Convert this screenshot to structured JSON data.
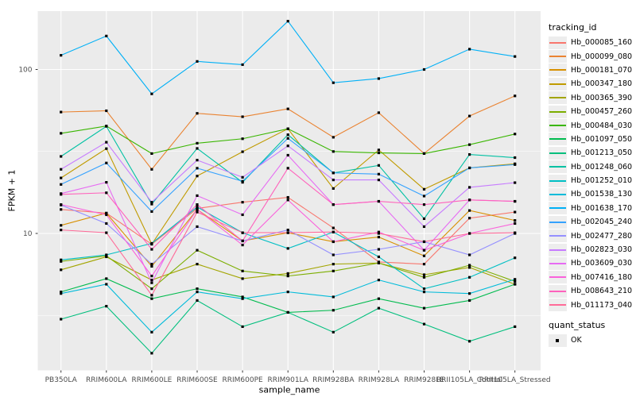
{
  "figure": {
    "background": "#FFFFFF",
    "panel_bg": "#EBEBEB",
    "grid_color": "#FFFFFF",
    "tick_color": "#333333",
    "tick_label_color": "#4D4D4D",
    "marker_color": "#000000"
  },
  "chart_data": {
    "type": "line",
    "title": "",
    "xlabel": "sample_name",
    "ylabel": "FPKM + 1",
    "y_scale": "log10",
    "ylim": [
      1.46,
      227
    ],
    "y_ticks": [
      10,
      100
    ],
    "y_minor_ticks": [
      3.162,
      31.62
    ],
    "grid": true,
    "legend_position": "right",
    "legend_title": "tracking_id",
    "legend2_title": "quant_status",
    "legend2_items": [
      {
        "label": "OK",
        "marker": "black-square"
      }
    ],
    "categories": [
      "PB350LA",
      "RRIM600LA",
      "RRIM600LE",
      "RRIM600SE",
      "RRIM600PE",
      "RRIM901LA",
      "RRIM928BA",
      "RRIM928LA",
      "RRIM928LE",
      "RRII105LA_Control",
      "RRII105LA_Stressed"
    ],
    "series": [
      {
        "name": "Hb_000085_160",
        "color": "#F8766D",
        "values": [
          14.0,
          13.3,
          8.6,
          14.2,
          15.5,
          16.6,
          10.8,
          6.7,
          6.5,
          12.4,
          13.5
        ]
      },
      {
        "name": "Hb_000099_080",
        "color": "#EA8331",
        "values": [
          55,
          56,
          24.6,
          54,
          51.5,
          57.5,
          38.6,
          54.5,
          30.7,
          52,
          69
        ]
      },
      {
        "name": "Hb_000181_070",
        "color": "#D89000",
        "values": [
          11.2,
          13.3,
          6.3,
          14,
          9,
          10.1,
          8.9,
          9.5,
          7.3,
          13.8,
          12
        ]
      },
      {
        "name": "Hb_000347_180",
        "color": "#C09B00",
        "values": [
          21.8,
          32.9,
          8.6,
          22.4,
          31.5,
          43.5,
          18.8,
          32.3,
          18.6,
          25.1,
          26.6
        ]
      },
      {
        "name": "Hb_000365_390",
        "color": "#A3A500",
        "values": [
          6.0,
          7.2,
          5.2,
          6.5,
          5.3,
          5.7,
          6.5,
          6.6,
          5.6,
          6.2,
          4.9
        ]
      },
      {
        "name": "Hb_000457_260",
        "color": "#7CAE00",
        "values": [
          6.75,
          7.3,
          4.6,
          7.9,
          5.9,
          5.5,
          5.9,
          6.6,
          5.4,
          6.4,
          5.1
        ]
      },
      {
        "name": "Hb_000484_030",
        "color": "#39B600",
        "values": [
          40.8,
          45.2,
          30.7,
          35.5,
          37.8,
          43.5,
          31.6,
          31.0,
          30.7,
          34.8,
          40.4
        ]
      },
      {
        "name": "Hb_001097_050",
        "color": "#00BB4E",
        "values": [
          4.4,
          5.3,
          4.0,
          4.6,
          4.1,
          3.3,
          3.4,
          4.0,
          3.5,
          3.9,
          4.9
        ]
      },
      {
        "name": "Hb_001213_050",
        "color": "#00BF7D",
        "values": [
          3.0,
          3.6,
          1.86,
          3.9,
          2.7,
          3.3,
          2.5,
          3.5,
          2.8,
          2.2,
          2.7
        ]
      },
      {
        "name": "Hb_001248_060",
        "color": "#00C1A3",
        "values": [
          29.5,
          45,
          15.1,
          33,
          20.5,
          40,
          23.4,
          26,
          12.3,
          30.3,
          29
        ]
      },
      {
        "name": "Hb_001252_010",
        "color": "#00BFC4",
        "values": [
          6.9,
          7.4,
          8.7,
          14.5,
          10.1,
          8.1,
          10.2,
          7.2,
          4.6,
          5.4,
          7.1
        ]
      },
      {
        "name": "Hb_001538_130",
        "color": "#00BBDA",
        "values": [
          4.3,
          4.9,
          2.5,
          4.4,
          4.0,
          4.4,
          4.1,
          5.2,
          4.4,
          4.3,
          5.25
        ]
      },
      {
        "name": "Hb_001638_170",
        "color": "#00B0F6",
        "values": [
          122,
          160,
          71,
          112,
          107,
          197,
          83,
          88,
          100,
          133,
          120
        ]
      },
      {
        "name": "Hb_002045_240",
        "color": "#35A2FF",
        "values": [
          19.9,
          26.9,
          13.6,
          25,
          20.8,
          38,
          23.4,
          23,
          16.9,
          25.1,
          26.3
        ]
      },
      {
        "name": "Hb_002477_280",
        "color": "#9590FF",
        "values": [
          14.9,
          11.5,
          6.5,
          11,
          9,
          10.5,
          7.4,
          8.0,
          8.9,
          7.4,
          10.0
        ]
      },
      {
        "name": "Hb_002823_030",
        "color": "#C77CFF",
        "values": [
          24.6,
          36,
          15.5,
          28,
          22,
          34.2,
          21.2,
          21.2,
          11,
          19.1,
          20.4
        ]
      },
      {
        "name": "Hb_003609_030",
        "color": "#E76BF3",
        "values": [
          17.5,
          20.5,
          5.0,
          17,
          13,
          30,
          15,
          15.7,
          7.9,
          16,
          15.7
        ]
      },
      {
        "name": "Hb_007416_180",
        "color": "#FA62DB",
        "values": [
          15,
          13,
          5.5,
          14,
          8.5,
          16,
          8.9,
          10.2,
          7.9,
          10,
          11.5
        ]
      },
      {
        "name": "Hb_008643_210",
        "color": "#FF62BC",
        "values": [
          17.3,
          17.7,
          8.0,
          15,
          9.0,
          25,
          15,
          15.7,
          15,
          16,
          15.7
        ]
      },
      {
        "name": "Hb_011173_040",
        "color": "#FF6A98",
        "values": [
          10.5,
          10.1,
          4.2,
          13.5,
          10.1,
          10.1,
          10.2,
          10,
          8.9,
          10,
          10.1
        ]
      }
    ]
  }
}
